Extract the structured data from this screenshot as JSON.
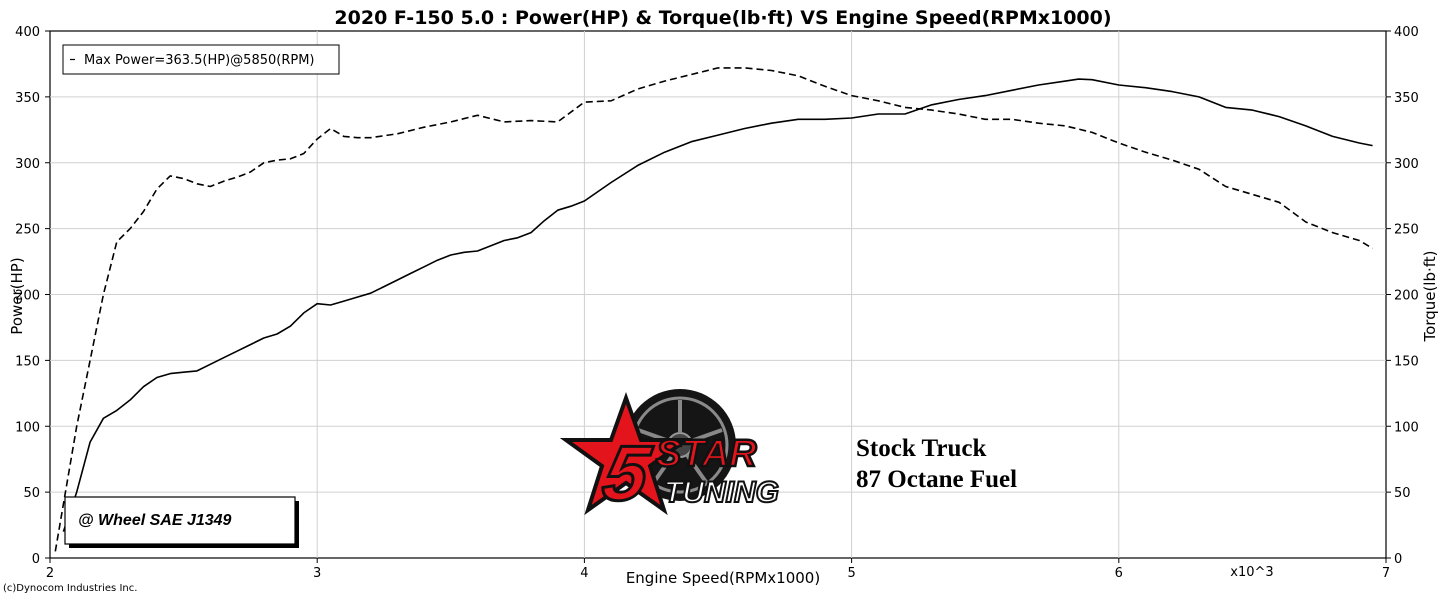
{
  "chart_data": {
    "type": "line",
    "title": "2020 F-150 5.0  : Power(HP) & Torque(lb·ft) VS Engine Speed(RPMx1000)",
    "xlabel": "Engine Speed(RPMx1000)",
    "ylabel_left": "Power(HP)",
    "ylabel_right": "Torque(lb·ft)",
    "x_multiplier_label": "x10^3",
    "xlim": [
      2,
      7
    ],
    "ylim": [
      0,
      400
    ],
    "x_ticks": [
      "2",
      "3",
      "4",
      "5",
      "6",
      "7"
    ],
    "y_ticks_left": [
      "0",
      "50",
      "100",
      "150",
      "200",
      "250",
      "300",
      "350",
      "400"
    ],
    "y_ticks_right": [
      "0",
      "50",
      "100",
      "150",
      "200",
      "250",
      "300",
      "350",
      "400"
    ],
    "grid": true,
    "legend": {
      "position": "top-left",
      "entries": [
        "Max Power=363.5(HP)@5850(RPM)"
      ]
    },
    "annotations": [
      "@ Wheel SAE J1349",
      "Stock Truck",
      "87 Octane Fuel"
    ],
    "series": [
      {
        "style": "solid",
        "axis": "left",
        "x": [
          2.05,
          2.1,
          2.15,
          2.2,
          2.25,
          2.3,
          2.35,
          2.4,
          2.45,
          2.5,
          2.55,
          2.6,
          2.65,
          2.7,
          2.75,
          2.8,
          2.85,
          2.9,
          2.95,
          3.0,
          3.05,
          3.1,
          3.15,
          3.2,
          3.25,
          3.3,
          3.35,
          3.4,
          3.45,
          3.5,
          3.55,
          3.6,
          3.65,
          3.7,
          3.75,
          3.8,
          3.85,
          3.9,
          3.95,
          4.0,
          4.1,
          4.2,
          4.3,
          4.4,
          4.5,
          4.6,
          4.7,
          4.8,
          4.9,
          5.0,
          5.1,
          5.2,
          5.3,
          5.4,
          5.5,
          5.6,
          5.7,
          5.8,
          5.85,
          5.9,
          6.0,
          6.1,
          6.2,
          6.3,
          6.4,
          6.5,
          6.6,
          6.7,
          6.8,
          6.9,
          6.95
        ],
        "values": [
          20,
          50,
          88,
          106,
          112,
          120,
          130,
          137,
          140,
          141,
          142,
          147,
          152,
          157,
          162,
          167,
          170,
          176,
          186,
          193,
          192,
          195,
          198,
          201,
          206,
          211,
          216,
          221,
          226,
          230,
          232,
          233,
          237,
          241,
          243,
          247,
          256,
          264,
          267,
          271,
          285,
          298,
          308,
          316,
          321,
          326,
          330,
          333,
          333,
          334,
          337,
          337,
          344,
          348,
          351,
          355,
          359,
          362,
          363.5,
          363,
          359,
          357,
          354,
          350,
          342,
          340,
          335,
          328,
          320,
          315,
          313
        ]
      },
      {
        "style": "dashed",
        "axis": "right",
        "x": [
          2.02,
          2.1,
          2.15,
          2.2,
          2.25,
          2.3,
          2.35,
          2.4,
          2.45,
          2.5,
          2.55,
          2.6,
          2.65,
          2.7,
          2.75,
          2.8,
          2.85,
          2.9,
          2.95,
          3.0,
          3.05,
          3.1,
          3.15,
          3.2,
          3.3,
          3.4,
          3.5,
          3.6,
          3.7,
          3.8,
          3.9,
          4.0,
          4.1,
          4.2,
          4.3,
          4.4,
          4.5,
          4.6,
          4.7,
          4.8,
          4.9,
          5.0,
          5.1,
          5.2,
          5.3,
          5.4,
          5.5,
          5.6,
          5.7,
          5.8,
          5.9,
          6.0,
          6.1,
          6.2,
          6.3,
          6.4,
          6.5,
          6.6,
          6.7,
          6.8,
          6.9,
          6.95
        ],
        "values": [
          5,
          100,
          150,
          200,
          240,
          250,
          263,
          280,
          290,
          288,
          284,
          282,
          286,
          289,
          293,
          300,
          302,
          303,
          307,
          318,
          326,
          320,
          319,
          319,
          322,
          327,
          331,
          336,
          331,
          332,
          331,
          346,
          347,
          356,
          362,
          367,
          372,
          372,
          370,
          366,
          358,
          351,
          347,
          342,
          340,
          337,
          333,
          333,
          330,
          328,
          323,
          315,
          308,
          302,
          295,
          282,
          276,
          270,
          255,
          247,
          241,
          235
        ]
      }
    ]
  },
  "footer": {
    "copyright": "(c)Dynocom Industries Inc."
  },
  "logo": {
    "digit": "5",
    "word1": "STAR",
    "word2": "TUNING"
  },
  "colors": {
    "line": "#000000",
    "grid": "#d0d0d0",
    "logo_red": "#e3141b",
    "logo_black": "#111111",
    "background": "#ffffff"
  }
}
